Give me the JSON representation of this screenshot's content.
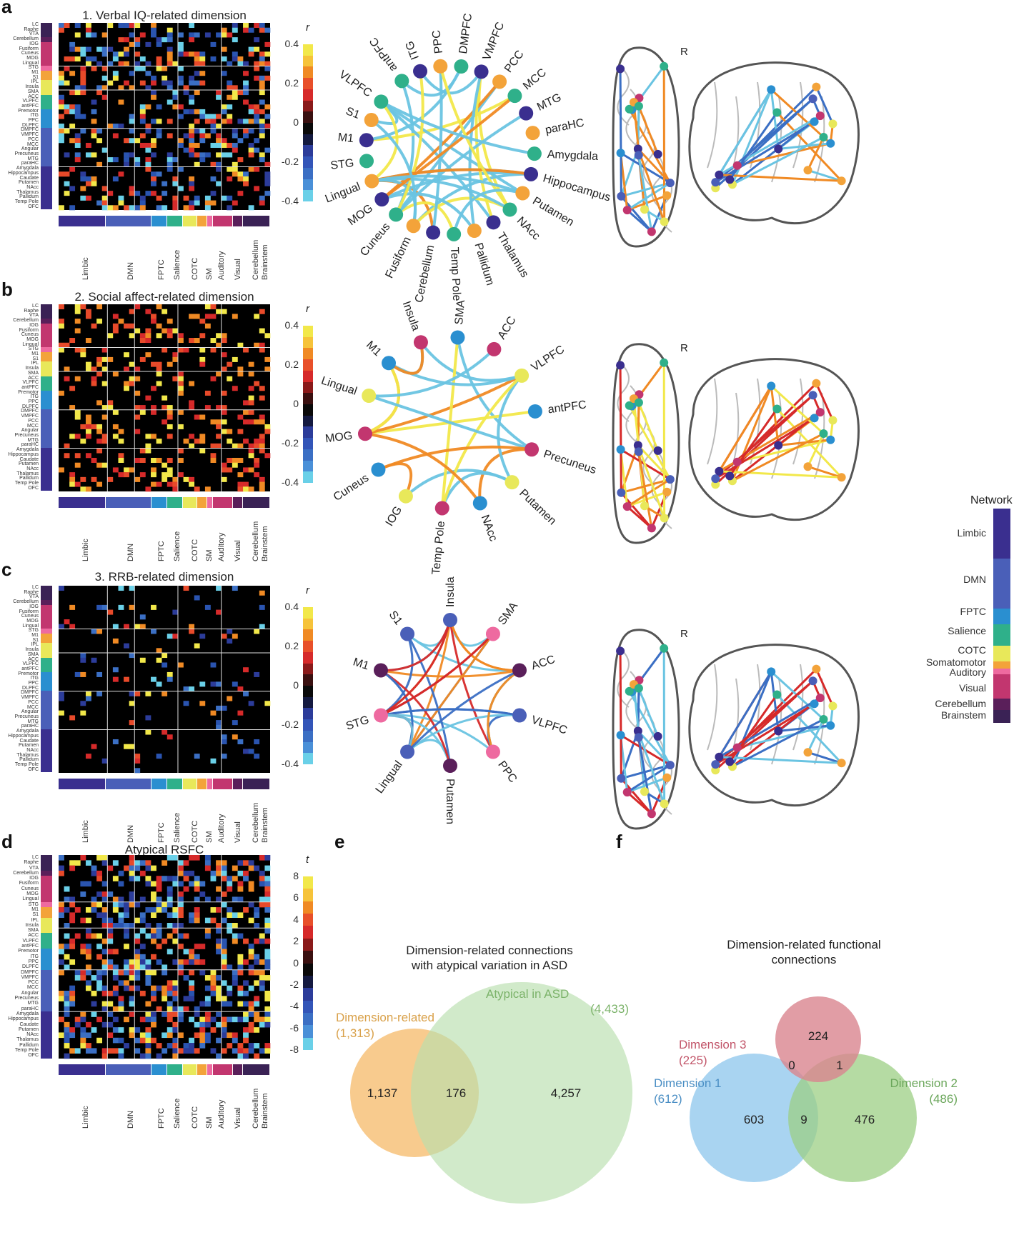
{
  "panels": {
    "a": {
      "letter": "a",
      "title": "1. Verbal IQ-related dimension"
    },
    "b": {
      "letter": "b",
      "title": "2. Social affect-related dimension"
    },
    "c": {
      "letter": "c",
      "title": "3. RRB-related dimension"
    },
    "d": {
      "letter": "d",
      "title": "Atypical RSFC"
    },
    "e": {
      "letter": "e",
      "title_line1": "Dimension-related connections",
      "title_line2": "with atypical variation in ASD"
    },
    "f": {
      "letter": "f",
      "title_line1": "Dimension-related functional",
      "title_line2": "connections"
    }
  },
  "roi_labels": [
    "LC",
    "Raphe",
    "VTA",
    "Cerebellum",
    "IOG",
    "Fusiform",
    "Cuneus",
    "MOG",
    "Lingual",
    "STG",
    "M1",
    "S1",
    "IPL",
    "Insula",
    "SMA",
    "ACC",
    "VLPFC",
    "antPFC",
    "Premotor",
    "ITG",
    "PPC",
    "DLPFC",
    "DMPFC",
    "VMPFC",
    "PCC",
    "MCC",
    "Angular",
    "Precuneus",
    "MTG",
    "paraHC",
    "Amygdala",
    "Hippocampus",
    "Caudate",
    "Putamen",
    "NAcc",
    "Thalamus",
    "Pallidum",
    "Temp Pole",
    "OFC"
  ],
  "network_axis": [
    "Limbic",
    "DMN",
    "FPTC",
    "Salience",
    "COTC",
    "SM",
    "Auditory",
    "Visual",
    "Cerebellum",
    "Brainstem"
  ],
  "colorbar_r": {
    "symbol": "r",
    "ticks": [
      "0.4",
      "0.2",
      "0",
      "-0.2",
      "-0.4"
    ]
  },
  "colorbar_t": {
    "symbol": "t",
    "ticks": [
      "8",
      "6",
      "4",
      "2",
      "0",
      "-2",
      "-4",
      "-6",
      "-8"
    ]
  },
  "colors": {
    "pos_high": "#f2e84a",
    "pos_mid": "#f08a24",
    "pos_low": "#d62a2a",
    "neg_low": "#2c3c9a",
    "neg_mid": "#3b6fc4",
    "neg_high": "#6ad0e8",
    "bg": "#000000"
  },
  "circles": {
    "a": [
      "antPFC",
      "ITG",
      "PPC",
      "DMPFC",
      "VMPFC",
      "PCC",
      "MCC",
      "MTG",
      "paraHC",
      "Amygdala",
      "Hippocampus",
      "Putamen",
      "NAcc",
      "Thalamus",
      "Pallidum",
      "Temp Pole",
      "Cerebellum",
      "Fusiform",
      "Cuneus",
      "MOG",
      "Lingual",
      "STG",
      "M1",
      "S1",
      "VLPFC"
    ],
    "b": [
      "SMA",
      "ACC",
      "VLPFC",
      "antPFC",
      "Precuneus",
      "Putamen",
      "NAcc",
      "Temp Pole",
      "IOG",
      "Cuneus",
      "MOG",
      "Lingual",
      "M1",
      "Insula"
    ],
    "c": [
      "Insula",
      "SMA",
      "ACC",
      "VLPFC",
      "PPC",
      "Putamen",
      "Lingual",
      "STG",
      "M1",
      "S1"
    ]
  },
  "brain_label": "R",
  "network_legend": {
    "title": "Network",
    "items": [
      "Limbic",
      "DMN",
      "FPTC",
      "Salience",
      "COTC",
      "Somatomotor",
      "Auditory",
      "Visual",
      "Cerebellum",
      "Brainstem"
    ]
  },
  "venn_e": {
    "left_name": "Dimension-related",
    "left_total": "(1,313)",
    "right_name": "Atypical in ASD",
    "right_total": "(4,433)",
    "left_only": "1,137",
    "overlap": "176",
    "right_only": "4,257",
    "left_color": "#f5b968",
    "right_color": "#b9dfae"
  },
  "venn_f": {
    "d1_name": "Dimension 1",
    "d1_total": "(612)",
    "d2_name": "Dimension 2",
    "d2_total": "(486)",
    "d3_name": "Dimension 3",
    "d3_total": "(225)",
    "d1_only": "603",
    "d2_only": "476",
    "d3_only": "224",
    "d1_d2": "9",
    "d1_d3": "0",
    "d2_d3": "1",
    "d1_color": "#8cc6ec",
    "d2_color": "#9ccf84",
    "d3_color": "#d9848f"
  }
}
